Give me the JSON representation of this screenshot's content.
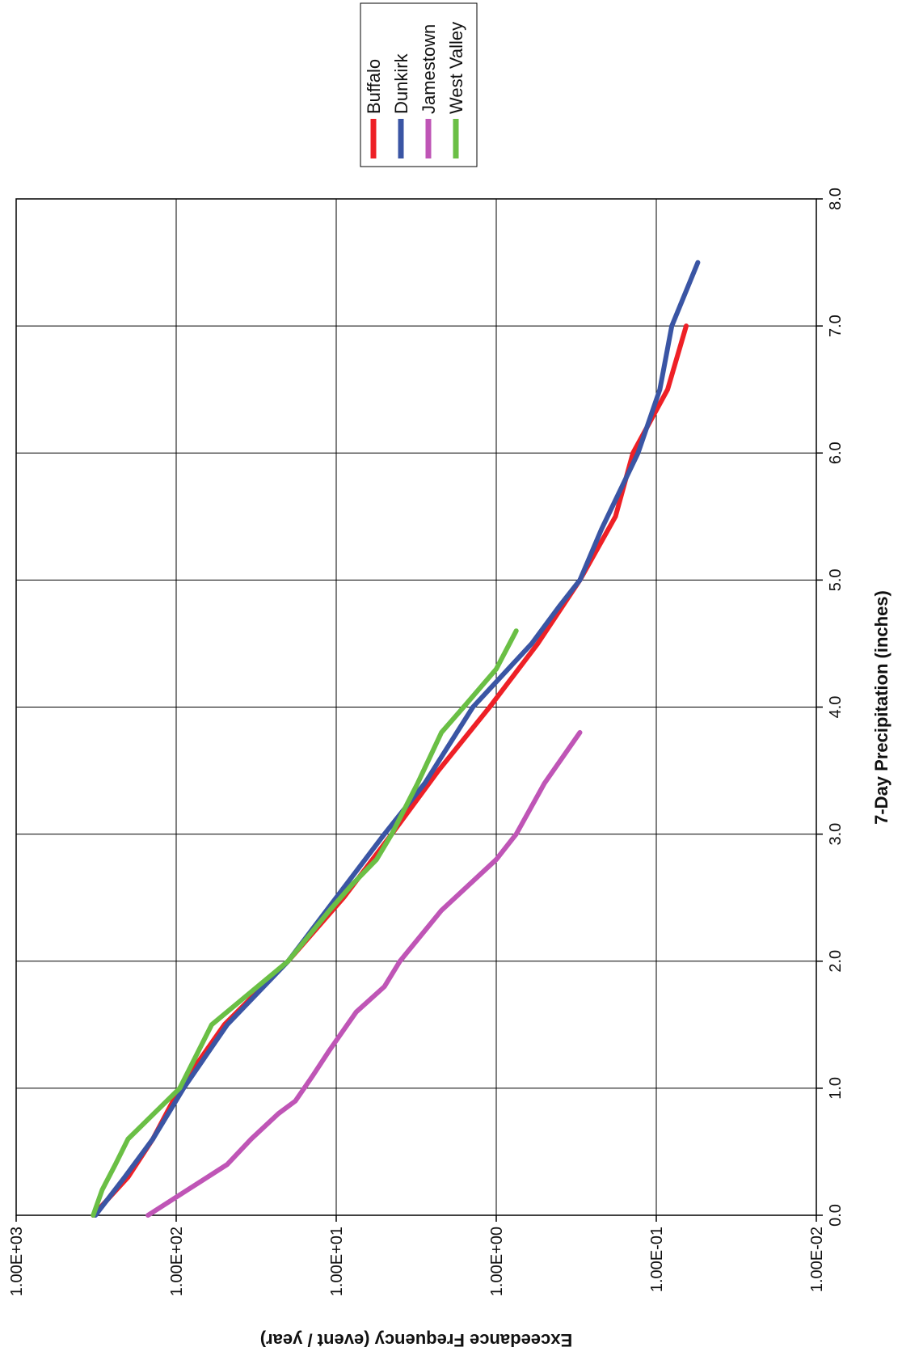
{
  "chart_data": {
    "type": "line",
    "orientation": "rotated 90 degrees clockwise",
    "title": "",
    "xlabel": "7-Day Precipitation (inches)",
    "ylabel": "Exceedance Frequency (event / year)",
    "xlim": [
      0,
      8
    ],
    "x_ticks": [
      "0.0",
      "1.0",
      "2.0",
      "3.0",
      "4.0",
      "5.0",
      "6.0",
      "7.0",
      "8.0"
    ],
    "y_scale": "log",
    "ylim": [
      0.01,
      1000
    ],
    "y_ticks": [
      "1.00E+03",
      "1.00E+02",
      "1.00E+01",
      "1.00E+00",
      "1.00E-01",
      "1.00E-02"
    ],
    "grid": true,
    "legend_position": "top-right",
    "series": [
      {
        "name": "Buffalo",
        "color": "#ee2026",
        "points": [
          [
            0.0,
            330
          ],
          [
            0.3,
            200
          ],
          [
            0.6,
            140
          ],
          [
            1.0,
            95
          ],
          [
            1.5,
            50
          ],
          [
            2.0,
            20
          ],
          [
            2.5,
            9
          ],
          [
            3.0,
            4.5
          ],
          [
            3.5,
            2.3
          ],
          [
            4.0,
            1.1
          ],
          [
            4.5,
            0.55
          ],
          [
            5.0,
            0.3
          ],
          [
            5.5,
            0.18
          ],
          [
            6.0,
            0.14
          ],
          [
            6.5,
            0.085
          ],
          [
            7.0,
            0.065
          ]
        ]
      },
      {
        "name": "Dunkirk",
        "color": "#3a55a4",
        "points": [
          [
            0.0,
            320
          ],
          [
            0.3,
            210
          ],
          [
            0.6,
            140
          ],
          [
            1.0,
            90
          ],
          [
            1.5,
            48
          ],
          [
            2.0,
            20
          ],
          [
            2.5,
            10
          ],
          [
            3.0,
            5.0
          ],
          [
            3.4,
            2.8
          ],
          [
            4.0,
            1.4
          ],
          [
            4.5,
            0.6
          ],
          [
            4.8,
            0.4
          ],
          [
            5.0,
            0.3
          ],
          [
            5.4,
            0.22
          ],
          [
            6.0,
            0.13
          ],
          [
            6.5,
            0.095
          ],
          [
            7.0,
            0.08
          ],
          [
            7.5,
            0.055
          ]
        ]
      },
      {
        "name": "Jamestown",
        "color": "#bf55b6",
        "points": [
          [
            0.0,
            150
          ],
          [
            0.2,
            85
          ],
          [
            0.4,
            48
          ],
          [
            0.6,
            34
          ],
          [
            0.8,
            23
          ],
          [
            0.9,
            18
          ],
          [
            1.1,
            14
          ],
          [
            1.3,
            11
          ],
          [
            1.6,
            7.5
          ],
          [
            1.8,
            5.0
          ],
          [
            2.0,
            4.0
          ],
          [
            2.4,
            2.2
          ],
          [
            2.8,
            1.0
          ],
          [
            3.0,
            0.75
          ],
          [
            3.4,
            0.5
          ],
          [
            3.8,
            0.3
          ]
        ]
      },
      {
        "name": "West Valley",
        "color": "#6abf45",
        "points": [
          [
            0.0,
            330
          ],
          [
            0.2,
            290
          ],
          [
            0.4,
            240
          ],
          [
            0.6,
            200
          ],
          [
            1.0,
            95
          ],
          [
            1.5,
            60
          ],
          [
            2.0,
            20
          ],
          [
            2.4,
            11
          ],
          [
            2.6,
            8.0
          ],
          [
            2.8,
            5.6
          ],
          [
            3.0,
            4.5
          ],
          [
            3.4,
            3.1
          ],
          [
            3.8,
            2.2
          ],
          [
            4.0,
            1.6
          ],
          [
            4.3,
            1.0
          ],
          [
            4.6,
            0.75
          ]
        ]
      }
    ]
  }
}
